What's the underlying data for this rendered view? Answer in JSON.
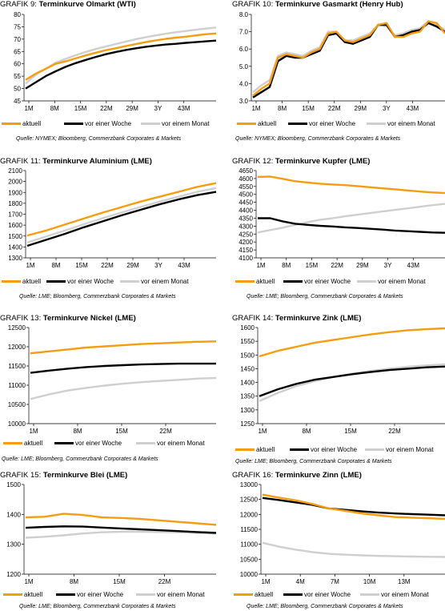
{
  "legend": {
    "aktuell": "aktuell",
    "week": "vor einer Woche",
    "month": "vor einem Monat"
  },
  "colors": {
    "aktuell": "#f59d0f",
    "week": "#000000",
    "month": "#cfcfcf"
  },
  "chart_data": [
    {
      "id": "g9",
      "type": "line",
      "prefix": "GRAFIK 9:",
      "title": "Terminkurve Olmarkt (WTI)",
      "source": "Quelle: NYMEX; Bloomberg, Commerzbank Corporates & Markets",
      "ylim": [
        45,
        80
      ],
      "yticks": [
        45,
        50,
        55,
        60,
        65,
        70,
        75,
        80
      ],
      "xticks": [
        "1M",
        "8M",
        "15M",
        "22M",
        "29M",
        "3Y",
        "43M"
      ],
      "series": [
        {
          "key": "aktuell",
          "values": [
            53.5,
            56,
            58,
            60,
            61,
            62.2,
            63.4,
            64.5,
            65.5,
            66.3,
            67.2,
            68,
            68.8,
            69.5,
            70.1,
            70.6,
            71,
            71.5,
            72,
            72.3
          ]
        },
        {
          "key": "week",
          "values": [
            50,
            52.5,
            55,
            57,
            58.8,
            60.3,
            61.6,
            62.8,
            63.9,
            64.8,
            65.6,
            66.3,
            66.9,
            67.4,
            67.8,
            68.1,
            68.5,
            68.8,
            69.1,
            69.4
          ]
        },
        {
          "key": "month",
          "values": [
            52,
            55.5,
            58,
            60.5,
            62,
            63.5,
            64.8,
            66,
            67,
            68,
            69,
            70,
            70.8,
            71.5,
            72.2,
            72.8,
            73.3,
            73.8,
            74.3,
            74.7
          ]
        }
      ]
    },
    {
      "id": "g10",
      "type": "line",
      "prefix": "GRAFIK 10:",
      "title": "Terminkurve Gasmarkt (Henry Hub)",
      "source": "Quelle: NYMEX; Bloomberg, Commerzbank Corporates & Markets",
      "ylim": [
        3,
        8
      ],
      "yticks": [
        3.0,
        4.0,
        5.0,
        6.0,
        7.0,
        8.0
      ],
      "ydec": 1,
      "xticks": [
        "1M",
        "8M",
        "15M",
        "22M",
        "29M",
        "3Y",
        "43M"
      ],
      "series": [
        {
          "key": "aktuell",
          "values": [
            3.3,
            3.7,
            4.0,
            5.5,
            5.7,
            5.6,
            5.5,
            5.8,
            6.0,
            6.9,
            7.0,
            6.5,
            6.4,
            6.6,
            6.8,
            7.4,
            7.5,
            6.7,
            6.7,
            6.9,
            7.0,
            7.6,
            7.5,
            6.9
          ]
        },
        {
          "key": "week",
          "values": [
            3.2,
            3.5,
            3.8,
            5.3,
            5.6,
            5.5,
            5.5,
            5.7,
            5.9,
            6.8,
            6.9,
            6.4,
            6.3,
            6.5,
            6.7,
            7.4,
            7.4,
            6.7,
            6.8,
            7.0,
            7.1,
            7.5,
            7.3,
            7.0
          ]
        },
        {
          "key": "month",
          "values": [
            3.5,
            3.9,
            4.2,
            5.6,
            5.8,
            5.7,
            5.6,
            5.9,
            6.1,
            7.0,
            7.0,
            6.5,
            6.5,
            6.7,
            6.9,
            7.4,
            7.3,
            6.8,
            6.9,
            7.1,
            7.2,
            7.6,
            7.4,
            7.1
          ]
        }
      ]
    },
    {
      "id": "g11",
      "type": "line",
      "prefix": "GRAFIK 11:",
      "title": "Terminkurve Aluminium (LME)",
      "source": "Quelle: LME; Bloomberg, Commerzbank Corporates & Markets",
      "ylim": [
        1300,
        2100
      ],
      "yticks": [
        1300,
        1400,
        1500,
        1600,
        1700,
        1800,
        1900,
        2000,
        2100
      ],
      "xticks": [
        "1M",
        "8M",
        "15M",
        "22M",
        "29M",
        "3Y",
        "43M"
      ],
      "series": [
        {
          "key": "aktuell",
          "values": [
            1505,
            1550,
            1605,
            1660,
            1715,
            1765,
            1815,
            1860,
            1905,
            1950,
            1985
          ]
        },
        {
          "key": "week",
          "values": [
            1410,
            1465,
            1520,
            1580,
            1635,
            1690,
            1740,
            1790,
            1835,
            1875,
            1905
          ]
        },
        {
          "key": "month",
          "values": [
            1440,
            1495,
            1550,
            1608,
            1663,
            1716,
            1766,
            1815,
            1860,
            1905,
            1940
          ]
        }
      ]
    },
    {
      "id": "g12",
      "type": "line",
      "prefix": "GRAFIK 12:",
      "title": "Terminkurve Kupfer (LME)",
      "source": "Quelle: LME; Bloomberg, Commerzbank Corporates & Markets",
      "ylim": [
        4100,
        4650
      ],
      "yticks": [
        4100,
        4150,
        4200,
        4250,
        4300,
        4350,
        4400,
        4450,
        4500,
        4550,
        4600,
        4650
      ],
      "xticks": [
        "1M",
        "8M",
        "15M",
        "22M",
        "29M",
        "3Y",
        "43M"
      ],
      "series": [
        {
          "key": "aktuell",
          "values": [
            4610,
            4612,
            4598,
            4583,
            4575,
            4567,
            4562,
            4558,
            4552,
            4545,
            4538,
            4532,
            4525,
            4518,
            4512,
            4508
          ]
        },
        {
          "key": "week",
          "values": [
            4350,
            4350,
            4330,
            4315,
            4308,
            4302,
            4298,
            4292,
            4288,
            4283,
            4278,
            4272,
            4268,
            4264,
            4260,
            4258
          ]
        },
        {
          "key": "month",
          "values": [
            4260,
            4275,
            4290,
            4308,
            4325,
            4340,
            4350,
            4362,
            4372,
            4382,
            4392,
            4402,
            4412,
            4422,
            4432,
            4440
          ]
        }
      ]
    },
    {
      "id": "g13",
      "type": "line",
      "prefix": "GRAFIK 13:",
      "title": "Terminkurve Nickel (LME)",
      "source": "Quelle: LME; Bloomberg, Commerzbank Corporates & Markets",
      "ylim": [
        10000,
        12500
      ],
      "yticks": [
        10000,
        10500,
        11000,
        11500,
        12000,
        12500
      ],
      "xticks": [
        "1M",
        "8M",
        "15M",
        "22M"
      ],
      "series": [
        {
          "key": "aktuell",
          "values": [
            11830,
            11880,
            11930,
            11980,
            12010,
            12040,
            12070,
            12090,
            12110,
            12130,
            12140
          ]
        },
        {
          "key": "week",
          "values": [
            11320,
            11380,
            11430,
            11470,
            11500,
            11520,
            11540,
            11550,
            11560,
            11560,
            11560
          ]
        },
        {
          "key": "month",
          "values": [
            10640,
            10760,
            10860,
            10930,
            10990,
            11040,
            11080,
            11110,
            11140,
            11170,
            11190
          ]
        }
      ]
    },
    {
      "id": "g14",
      "type": "line",
      "prefix": "GRAFIK 14:",
      "title": "Terminkurve Zink (LME)",
      "source": "Quelle: LME; Bloomberg, Commerzbank Corporates & Markets",
      "ylim": [
        1250,
        1600
      ],
      "yticks": [
        1250,
        1300,
        1350,
        1400,
        1450,
        1500,
        1550,
        1600
      ],
      "xticks": [
        "1M",
        "8M",
        "15M",
        "22M"
      ],
      "series": [
        {
          "key": "aktuell",
          "values": [
            1495,
            1515,
            1530,
            1545,
            1555,
            1565,
            1575,
            1583,
            1590,
            1594,
            1597
          ]
        },
        {
          "key": "week",
          "values": [
            1350,
            1375,
            1395,
            1410,
            1420,
            1430,
            1438,
            1445,
            1450,
            1455,
            1458
          ]
        },
        {
          "key": "month",
          "values": [
            1332,
            1362,
            1387,
            1405,
            1420,
            1432,
            1442,
            1450,
            1457,
            1462,
            1466
          ]
        }
      ]
    },
    {
      "id": "g15",
      "type": "line",
      "prefix": "GRAFIK 15:",
      "title": "Terminkurve Blei (LME)",
      "source": "Quelle: LME; Bloomberg, Commerzbank Corporates & Markets",
      "ylim": [
        1200,
        1500
      ],
      "yticks": [
        1200,
        1300,
        1400,
        1500
      ],
      "xticks": [
        "1M",
        "8M",
        "15M",
        "22M"
      ],
      "series": [
        {
          "key": "aktuell",
          "values": [
            1390,
            1392,
            1402,
            1398,
            1390,
            1388,
            1385,
            1380,
            1375,
            1370,
            1365
          ]
        },
        {
          "key": "week",
          "values": [
            1355,
            1358,
            1360,
            1359,
            1356,
            1353,
            1350,
            1347,
            1344,
            1341,
            1338
          ]
        },
        {
          "key": "month",
          "values": [
            1322,
            1325,
            1330,
            1336,
            1340,
            1342,
            1342,
            1341,
            1340,
            1338,
            1336
          ]
        }
      ]
    },
    {
      "id": "g16",
      "type": "line",
      "prefix": "GRAFIK 16:",
      "title": "Terminkurve Zinn (LME)",
      "source": "Quelle: LME; Bloomberg, Commerzbank Corporates & Markets",
      "ylim": [
        10000,
        13000
      ],
      "yticks": [
        10000,
        10500,
        11000,
        11500,
        12000,
        12500,
        13000
      ],
      "xticks": [
        "1M",
        "4M",
        "7M",
        "10M",
        "13M"
      ],
      "series": [
        {
          "key": "aktuell",
          "values": [
            12660,
            12560,
            12470,
            12350,
            12200,
            12120,
            12030,
            11970,
            11910,
            11890,
            11870,
            11850
          ]
        },
        {
          "key": "week",
          "values": [
            12550,
            12480,
            12400,
            12320,
            12200,
            12150,
            12100,
            12060,
            12030,
            12010,
            11990,
            11970
          ]
        },
        {
          "key": "month",
          "values": [
            11050,
            10920,
            10820,
            10740,
            10680,
            10650,
            10630,
            10610,
            10600,
            10590,
            10580,
            10575
          ]
        }
      ]
    }
  ]
}
